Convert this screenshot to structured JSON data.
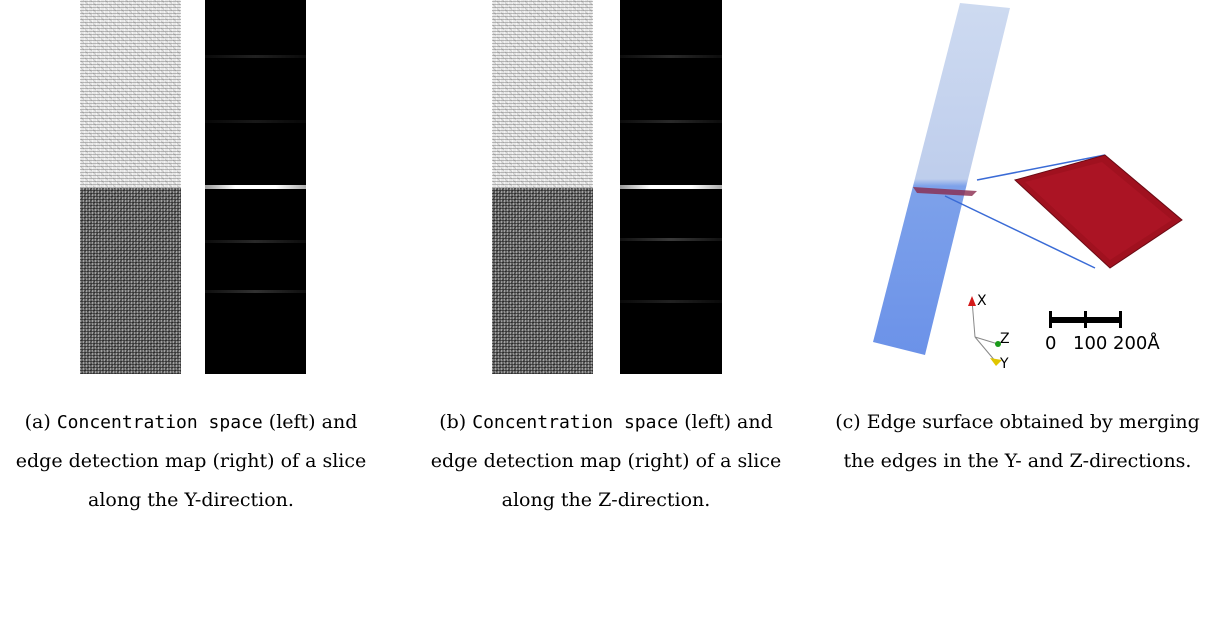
{
  "panels": [
    {
      "id": "a",
      "label": "(a)",
      "caption_mono": "Concentration space",
      "caption_rest": "(left) and edge detection map (right) of a slice along the Y-direction."
    },
    {
      "id": "b",
      "label": "(b)",
      "caption_mono": "Concentration space",
      "caption_rest": "(left) and edge detection map (right) of a slice along the Z-direction."
    },
    {
      "id": "c",
      "label": "(c)",
      "caption_text": "Edge surface obtained by merging the edges in the Y- and Z-directions."
    }
  ],
  "panel_c": {
    "axes": {
      "x": "X",
      "y": "Y",
      "z": "Z"
    },
    "scale_bar": {
      "ticks": [
        "0",
        "100",
        "200Å"
      ]
    },
    "colors": {
      "rod": "#5b86e6",
      "surface": "#a0111f",
      "leader_lines": "#3a6bd6"
    }
  }
}
